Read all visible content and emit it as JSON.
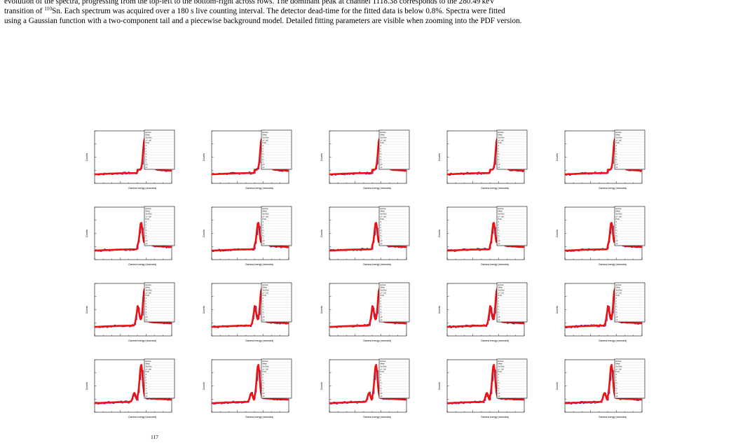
{
  "caption": {
    "line1_pre": "evolution of the spectra, progressing from the top-left to the bottom-right across rows. The dominant peak at channel 1118.38 corresponds to the 280.49 keV",
    "line2_pre": "transition of ",
    "isotope_mass": "110",
    "isotope_symbol": "Sn",
    "line2_post": ". Each spectrum was acquired over a 180 s live counting interval. The detector dead-time for the fitted data is below 0.8%. Spectra were fitted",
    "line3": "using a Gaussian function with a two-component tail and a piecewise background model. Detailed fitting parameters are visible when zooming into the PDF version."
  },
  "footer_fragment": "117",
  "panel_axes": {
    "ylabel": "Counts",
    "xlabel": "Gamma energy (channels)"
  },
  "stats_labels": [
    "Entries",
    "Mean",
    "Std Dev",
    "χ² / ndf",
    "Prob",
    "A",
    "μ",
    "σ",
    "η₁",
    "τ₁",
    "η₂",
    "τ₂",
    "p0",
    "p1"
  ],
  "colors": {
    "data": "#1a1ab4",
    "fit": "#ee1111",
    "frame": "#000000"
  },
  "chart_data": {
    "type": "line",
    "layout": "5x4 grid of spectra",
    "series": [
      {
        "name": "data",
        "style": "histogram"
      },
      {
        "name": "fit",
        "style": "line"
      }
    ]
  }
}
